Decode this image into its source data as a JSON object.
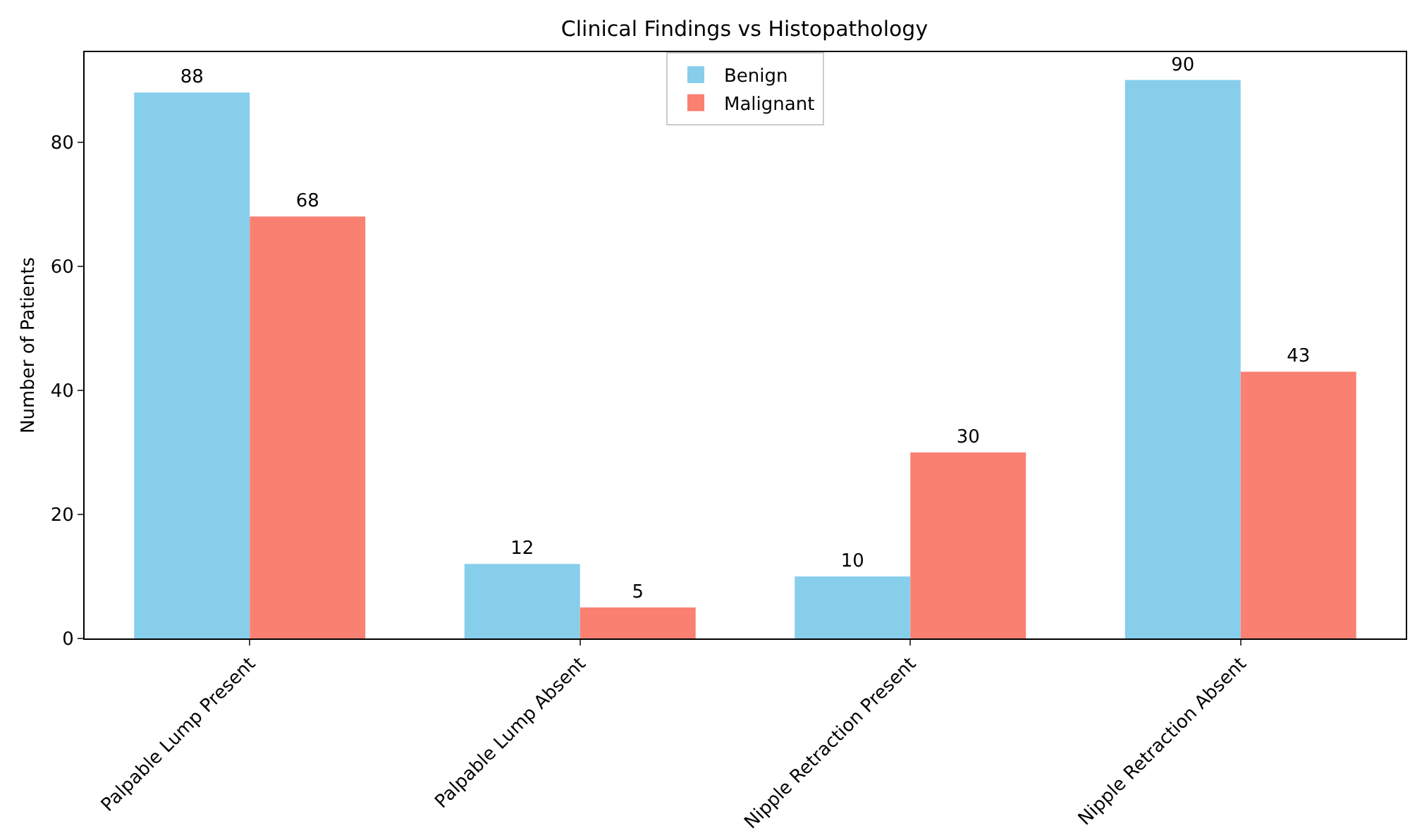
{
  "chart_data": {
    "type": "bar",
    "title": "Clinical Findings vs Histopathology",
    "ylabel": "Number of Patients",
    "categories": [
      "Palpable Lump Present",
      "Palpable Lump Absent",
      "Nipple Retraction Present",
      "Nipple Retraction Absent"
    ],
    "series": [
      {
        "name": "Benign",
        "color": "#87ceeb",
        "values": [
          88,
          12,
          10,
          90
        ]
      },
      {
        "name": "Malignant",
        "color": "#fa8072",
        "values": [
          68,
          5,
          30,
          43
        ]
      }
    ],
    "ylim": [
      0,
      94.5
    ],
    "yticks": [
      0,
      20,
      40,
      60,
      80
    ],
    "grid": false,
    "legend": "top",
    "data_labels": true
  }
}
